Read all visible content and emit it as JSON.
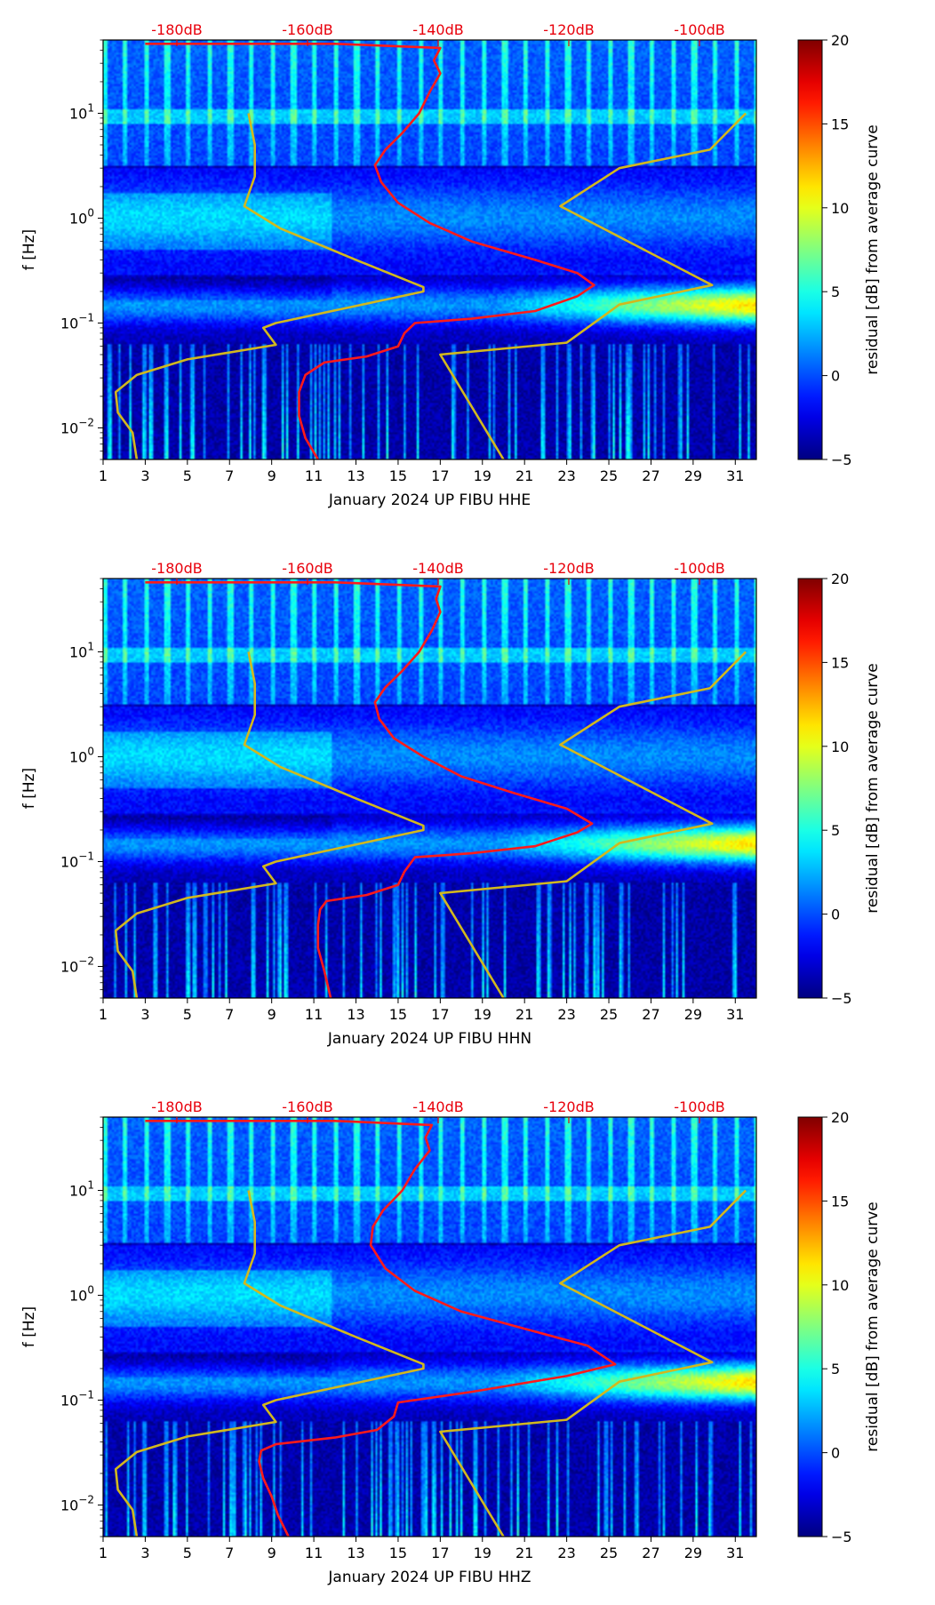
{
  "figure": {
    "background": "#ffffff"
  },
  "chart_data": [
    {
      "type": "heatmap",
      "station": "UP FIBU",
      "channel": "HHE",
      "xlabel": "January 2024 UP FIBU  HHE",
      "ylabel": "f [Hz]",
      "xlim": [
        1,
        32
      ],
      "x_ticks": [
        1,
        3,
        5,
        7,
        9,
        11,
        13,
        15,
        17,
        19,
        21,
        23,
        25,
        27,
        29,
        31
      ],
      "ylim": [
        0.005,
        50
      ],
      "yscale": "log",
      "y_ticks": [
        {
          "value": 0.01,
          "base": "10",
          "exp": "−2"
        },
        {
          "value": 0.1,
          "base": "10",
          "exp": "−1"
        },
        {
          "value": 1,
          "base": "10",
          "exp": "0"
        },
        {
          "value": 10,
          "base": "10",
          "exp": "1"
        }
      ],
      "db_axis": {
        "labels": [
          "-180dB",
          "-160dB",
          "-140dB",
          "-120dB",
          "-100dB"
        ],
        "positions": [
          4.5,
          10.7,
          16.9,
          23.1,
          29.3
        ],
        "color": "#e8000b"
      },
      "colorbar": {
        "label": "residual [dB] from average curve",
        "range": [
          -5,
          20
        ],
        "ticks": [
          -5,
          0,
          5,
          10,
          15,
          20
        ],
        "colormap": "jet"
      },
      "red_curve": {
        "color": "#ff1a1a",
        "points": [
          [
            11.2,
            0.005
          ],
          [
            10.6,
            0.008
          ],
          [
            10.3,
            0.013
          ],
          [
            10.3,
            0.022
          ],
          [
            10.6,
            0.032
          ],
          [
            11.5,
            0.042
          ],
          [
            13.5,
            0.048
          ],
          [
            15.0,
            0.06
          ],
          [
            15.3,
            0.08
          ],
          [
            15.8,
            0.1
          ],
          [
            18.5,
            0.11
          ],
          [
            21.5,
            0.13
          ],
          [
            23.5,
            0.18
          ],
          [
            24.3,
            0.23
          ],
          [
            23.5,
            0.3
          ],
          [
            21.5,
            0.4
          ],
          [
            18.5,
            0.6
          ],
          [
            16.5,
            0.9
          ],
          [
            15.0,
            1.4
          ],
          [
            14.2,
            2.2
          ],
          [
            13.9,
            3.2
          ],
          [
            14.4,
            4.5
          ],
          [
            15.2,
            6.5
          ],
          [
            16.0,
            10.0
          ],
          [
            16.5,
            16.0
          ],
          [
            17.0,
            24.0
          ],
          [
            16.7,
            32.0
          ],
          [
            17.0,
            42.0
          ],
          [
            12.0,
            46.0
          ],
          [
            3.0,
            46.0
          ]
        ]
      },
      "yellow_curve": {
        "color": "#d2b81e",
        "points": [
          [
            2.6,
            0.005
          ],
          [
            2.4,
            0.009
          ],
          [
            1.7,
            0.014
          ],
          [
            1.6,
            0.022
          ],
          [
            2.6,
            0.032
          ],
          [
            5.0,
            0.045
          ],
          [
            9.2,
            0.062
          ],
          [
            8.6,
            0.09
          ],
          [
            9.2,
            0.1
          ],
          [
            16.2,
            0.2
          ],
          [
            16.2,
            0.22
          ],
          [
            13.0,
            0.4
          ],
          [
            9.4,
            0.8
          ],
          [
            7.7,
            1.3
          ],
          [
            8.2,
            2.5
          ],
          [
            8.2,
            5.0
          ],
          [
            7.9,
            10.0
          ]
        ]
      },
      "yellow_curve_2": {
        "color": "#d2b81e",
        "points": [
          [
            20.0,
            0.005
          ],
          [
            17.0,
            0.05
          ],
          [
            23.0,
            0.065
          ],
          [
            25.5,
            0.15
          ],
          [
            29.9,
            0.23
          ],
          [
            22.7,
            1.3
          ],
          [
            25.5,
            3.0
          ],
          [
            29.8,
            4.5
          ],
          [
            31.5,
            10.0
          ]
        ]
      }
    },
    {
      "type": "heatmap",
      "station": "UP FIBU",
      "channel": "HHN",
      "xlabel": "January 2024 UP FIBU  HHN",
      "ylabel": "f [Hz]",
      "xlim": [
        1,
        32
      ],
      "x_ticks": [
        1,
        3,
        5,
        7,
        9,
        11,
        13,
        15,
        17,
        19,
        21,
        23,
        25,
        27,
        29,
        31
      ],
      "ylim": [
        0.005,
        50
      ],
      "yscale": "log",
      "y_ticks": [
        {
          "value": 0.01,
          "base": "10",
          "exp": "−2"
        },
        {
          "value": 0.1,
          "base": "10",
          "exp": "−1"
        },
        {
          "value": 1,
          "base": "10",
          "exp": "0"
        },
        {
          "value": 10,
          "base": "10",
          "exp": "1"
        }
      ],
      "db_axis": {
        "labels": [
          "-180dB",
          "-160dB",
          "-140dB",
          "-120dB",
          "-100dB"
        ],
        "positions": [
          4.5,
          10.7,
          16.9,
          23.1,
          29.3
        ],
        "color": "#e8000b"
      },
      "colorbar": {
        "label": "residual [dB] from average curve",
        "range": [
          -5,
          20
        ],
        "ticks": [
          -5,
          0,
          5,
          10,
          15,
          20
        ],
        "colormap": "jet"
      },
      "red_curve": {
        "color": "#ff1a1a",
        "points": [
          [
            11.8,
            0.005
          ],
          [
            11.5,
            0.009
          ],
          [
            11.2,
            0.015
          ],
          [
            11.2,
            0.025
          ],
          [
            11.3,
            0.035
          ],
          [
            11.6,
            0.042
          ],
          [
            13.5,
            0.048
          ],
          [
            15.0,
            0.06
          ],
          [
            15.3,
            0.08
          ],
          [
            15.8,
            0.11
          ],
          [
            18.5,
            0.12
          ],
          [
            21.5,
            0.14
          ],
          [
            23.5,
            0.19
          ],
          [
            24.2,
            0.23
          ],
          [
            23.0,
            0.32
          ],
          [
            20.5,
            0.45
          ],
          [
            18.0,
            0.65
          ],
          [
            16.2,
            1.0
          ],
          [
            14.8,
            1.5
          ],
          [
            14.1,
            2.3
          ],
          [
            13.9,
            3.3
          ],
          [
            14.4,
            4.6
          ],
          [
            15.2,
            6.6
          ],
          [
            16.0,
            10.0
          ],
          [
            16.6,
            16.0
          ],
          [
            17.0,
            24.0
          ],
          [
            16.8,
            32.0
          ],
          [
            17.0,
            42.0
          ],
          [
            12.0,
            46.0
          ],
          [
            3.0,
            46.0
          ]
        ]
      },
      "yellow_curve": {
        "color": "#d2b81e",
        "points": [
          [
            2.6,
            0.005
          ],
          [
            2.4,
            0.009
          ],
          [
            1.7,
            0.014
          ],
          [
            1.6,
            0.022
          ],
          [
            2.6,
            0.032
          ],
          [
            5.0,
            0.045
          ],
          [
            9.2,
            0.062
          ],
          [
            8.6,
            0.09
          ],
          [
            9.2,
            0.1
          ],
          [
            16.2,
            0.2
          ],
          [
            16.2,
            0.22
          ],
          [
            13.0,
            0.4
          ],
          [
            9.4,
            0.8
          ],
          [
            7.7,
            1.3
          ],
          [
            8.2,
            2.5
          ],
          [
            8.2,
            5.0
          ],
          [
            7.9,
            10.0
          ]
        ]
      },
      "yellow_curve_2": {
        "color": "#d2b81e",
        "points": [
          [
            20.0,
            0.005
          ],
          [
            17.0,
            0.05
          ],
          [
            23.0,
            0.065
          ],
          [
            25.5,
            0.15
          ],
          [
            29.9,
            0.23
          ],
          [
            22.7,
            1.3
          ],
          [
            25.5,
            3.0
          ],
          [
            29.8,
            4.5
          ],
          [
            31.5,
            10.0
          ]
        ]
      }
    },
    {
      "type": "heatmap",
      "station": "UP FIBU",
      "channel": "HHZ",
      "xlabel": "January 2024 UP FIBU  HHZ",
      "ylabel": "f [Hz]",
      "xlim": [
        1,
        32
      ],
      "x_ticks": [
        1,
        3,
        5,
        7,
        9,
        11,
        13,
        15,
        17,
        19,
        21,
        23,
        25,
        27,
        29,
        31
      ],
      "ylim": [
        0.005,
        50
      ],
      "yscale": "log",
      "y_ticks": [
        {
          "value": 0.01,
          "base": "10",
          "exp": "−2"
        },
        {
          "value": 0.1,
          "base": "10",
          "exp": "−1"
        },
        {
          "value": 1,
          "base": "10",
          "exp": "0"
        },
        {
          "value": 10,
          "base": "10",
          "exp": "1"
        }
      ],
      "db_axis": {
        "labels": [
          "-180dB",
          "-160dB",
          "-140dB",
          "-120dB",
          "-100dB"
        ],
        "positions": [
          4.5,
          10.7,
          16.9,
          23.1,
          29.3
        ],
        "color": "#e8000b"
      },
      "colorbar": {
        "label": "residual [dB] from average curve",
        "range": [
          -5,
          20
        ],
        "ticks": [
          -5,
          0,
          5,
          10,
          15,
          20
        ],
        "colormap": "jet"
      },
      "red_curve": {
        "color": "#ff1a1a",
        "points": [
          [
            9.8,
            0.005
          ],
          [
            9.3,
            0.008
          ],
          [
            9.0,
            0.012
          ],
          [
            8.6,
            0.018
          ],
          [
            8.4,
            0.026
          ],
          [
            8.5,
            0.033
          ],
          [
            9.2,
            0.038
          ],
          [
            12.0,
            0.044
          ],
          [
            14.0,
            0.052
          ],
          [
            14.8,
            0.07
          ],
          [
            15.0,
            0.095
          ],
          [
            18.5,
            0.12
          ],
          [
            23.0,
            0.17
          ],
          [
            25.3,
            0.22
          ],
          [
            24.0,
            0.33
          ],
          [
            21.0,
            0.48
          ],
          [
            18.0,
            0.7
          ],
          [
            15.8,
            1.1
          ],
          [
            14.4,
            1.8
          ],
          [
            13.7,
            3.0
          ],
          [
            13.8,
            4.5
          ],
          [
            14.3,
            6.5
          ],
          [
            15.2,
            10.0
          ],
          [
            15.8,
            16.0
          ],
          [
            16.5,
            24.0
          ],
          [
            16.3,
            32.0
          ],
          [
            16.6,
            42.0
          ],
          [
            12.0,
            46.0
          ],
          [
            3.0,
            46.0
          ]
        ]
      },
      "yellow_curve": {
        "color": "#d2b81e",
        "points": [
          [
            2.6,
            0.005
          ],
          [
            2.4,
            0.009
          ],
          [
            1.7,
            0.014
          ],
          [
            1.6,
            0.022
          ],
          [
            2.6,
            0.032
          ],
          [
            5.0,
            0.045
          ],
          [
            9.2,
            0.062
          ],
          [
            8.6,
            0.09
          ],
          [
            9.2,
            0.1
          ],
          [
            16.2,
            0.2
          ],
          [
            16.2,
            0.22
          ],
          [
            13.0,
            0.4
          ],
          [
            9.4,
            0.8
          ],
          [
            7.7,
            1.3
          ],
          [
            8.2,
            2.5
          ],
          [
            8.2,
            5.0
          ],
          [
            7.9,
            10.0
          ]
        ]
      },
      "yellow_curve_2": {
        "color": "#d2b81e",
        "points": [
          [
            20.0,
            0.005
          ],
          [
            17.0,
            0.05
          ],
          [
            23.0,
            0.065
          ],
          [
            25.5,
            0.15
          ],
          [
            29.9,
            0.23
          ],
          [
            22.7,
            1.3
          ],
          [
            25.5,
            3.0
          ],
          [
            29.8,
            4.5
          ],
          [
            31.5,
            10.0
          ]
        ]
      }
    }
  ]
}
